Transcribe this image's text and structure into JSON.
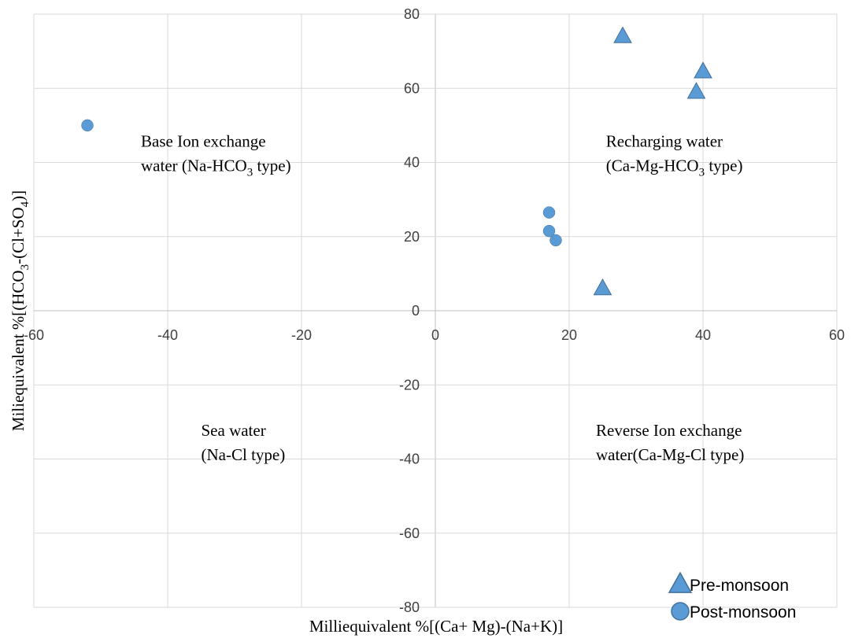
{
  "chart_data": {
    "type": "scatter",
    "xlabel": "Milliequivalent %[(Ca+ Mg)-(Na+K)]",
    "ylabel": {
      "parts": [
        {
          "t": "Miliequivalent %[(HCO",
          "sub": false
        },
        {
          "t": "3",
          "sub": true
        },
        {
          "t": "-(Cl+SO",
          "sub": false
        },
        {
          "t": "4",
          "sub": true
        },
        {
          "t": ")]",
          "sub": false
        }
      ]
    },
    "xlim": [
      -60,
      60
    ],
    "ylim": [
      -80,
      80
    ],
    "xticks": [
      -60,
      -40,
      -20,
      0,
      20,
      40,
      60
    ],
    "yticks": [
      -80,
      -60,
      -40,
      -20,
      0,
      20,
      40,
      60,
      80
    ],
    "grid": true,
    "legend_position": "bottom-right",
    "series": [
      {
        "name": "Pre-monsoon",
        "marker": "triangle",
        "color": "#5b9bd5",
        "points": [
          [
            28,
            74
          ],
          [
            40,
            64.5
          ],
          [
            39,
            59
          ],
          [
            25,
            6
          ]
        ]
      },
      {
        "name": "Post-monsoon",
        "marker": "circle",
        "color": "#5b9bd5",
        "points": [
          [
            -52,
            50
          ],
          [
            17,
            26.5
          ],
          [
            17,
            21.5
          ],
          [
            18,
            19
          ]
        ]
      }
    ],
    "annotations": [
      {
        "id": "base-ion",
        "x": -44,
        "y": 40,
        "lines": [
          [
            {
              "t": "Base Ion exchange",
              "sub": false
            }
          ],
          [
            {
              "t": "water (Na-HCO",
              "sub": false
            },
            {
              "t": "3",
              "sub": true
            },
            {
              "t": "  type)",
              "sub": false
            }
          ]
        ]
      },
      {
        "id": "recharging",
        "x": 25.5,
        "y": 40,
        "lines": [
          [
            {
              "t": "Recharging water",
              "sub": false
            }
          ],
          [
            {
              "t": "(Ca-Mg-HCO",
              "sub": false
            },
            {
              "t": "3",
              "sub": true
            },
            {
              "t": " type)",
              "sub": false
            }
          ]
        ]
      },
      {
        "id": "sea-water",
        "x": -35,
        "y": -38,
        "lines": [
          [
            {
              "t": "Sea water",
              "sub": false
            }
          ],
          [
            {
              "t": "(Na-Cl type)",
              "sub": false
            }
          ]
        ]
      },
      {
        "id": "reverse-ion",
        "x": 24,
        "y": -38,
        "lines": [
          [
            {
              "t": "Reverse Ion exchange",
              "sub": false
            }
          ],
          [
            {
              "t": "water(Ca-Mg-Cl type)",
              "sub": false
            }
          ]
        ]
      }
    ]
  }
}
